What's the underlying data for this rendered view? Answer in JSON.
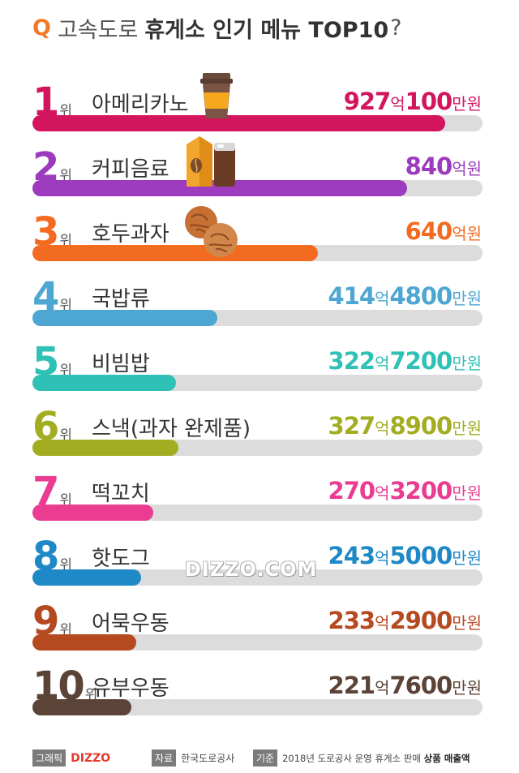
{
  "title": {
    "q": "Q",
    "lead": "고속도로",
    "main": "휴게소 인기 메뉴 TOP10",
    "mark": "?"
  },
  "rank_suffix": "위",
  "chart_data": {
    "type": "bar",
    "title": "고속도로 휴게소 인기 메뉴 TOP10?",
    "unit": "억원",
    "categories": [
      "아메리카노",
      "커피음료",
      "호두과자",
      "국밥류",
      "비빔밥",
      "스낵(과자 완제품)",
      "떡꼬치",
      "핫도그",
      "어묵우동",
      "유부우동"
    ],
    "values": [
      927.01,
      840,
      640,
      414.48,
      322.72,
      327.89,
      270.32,
      243.5,
      233.29,
      221.76
    ],
    "ylim": [
      0,
      1010
    ],
    "rows": [
      {
        "rank": "1",
        "name": "아메리카노",
        "amount_parts": [
          "927",
          "억",
          "100",
          "만원"
        ],
        "color": "#d3155e",
        "value": 927.01
      },
      {
        "rank": "2",
        "name": "커피음료",
        "amount_parts": [
          "840",
          "억원"
        ],
        "color": "#9c3bbd",
        "value": 840
      },
      {
        "rank": "3",
        "name": "호두과자",
        "amount_parts": [
          "640",
          "억원"
        ],
        "color": "#f36b21",
        "value": 640
      },
      {
        "rank": "4",
        "name": "국밥류",
        "amount_parts": [
          "414",
          "억",
          "4800",
          "만원"
        ],
        "color": "#4ea7d2",
        "value": 414.48
      },
      {
        "rank": "5",
        "name": "비빔밥",
        "amount_parts": [
          "322",
          "억",
          "7200",
          "만원"
        ],
        "color": "#2fc1b5",
        "value": 322.72
      },
      {
        "rank": "6",
        "name": "스낵(과자 완제품)",
        "amount_parts": [
          "327",
          "억",
          "8900",
          "만원"
        ],
        "color": "#a2ad21",
        "value": 327.89
      },
      {
        "rank": "7",
        "name": "떡꼬치",
        "amount_parts": [
          "270",
          "억",
          "3200",
          "만원"
        ],
        "color": "#ea3d92",
        "value": 270.32
      },
      {
        "rank": "8",
        "name": "핫도그",
        "amount_parts": [
          "243",
          "억",
          "5000",
          "만원"
        ],
        "color": "#1f88c6",
        "value": 243.5
      },
      {
        "rank": "9",
        "name": "어묵우동",
        "amount_parts": [
          "233",
          "억",
          "2900",
          "만원"
        ],
        "color": "#b54a20",
        "value": 233.29
      },
      {
        "rank": "10",
        "name": "유부우동",
        "amount_parts": [
          "221",
          "억",
          "7600",
          "만원"
        ],
        "color": "#5b4337",
        "value": 221.76
      }
    ]
  },
  "watermark": "DIZZO.COM",
  "footer": {
    "credit_label": "그래픽",
    "credit_brand": "DIZZO",
    "source_label": "자료",
    "source_value": "한국도로공사",
    "basis_label": "기준",
    "basis_value": "2018년 도로공사 운영 휴게소 판매",
    "basis_bold": "상품 매출액"
  },
  "icons": [
    "coffee-cup-icon",
    "coffee-drinks-icon",
    "walnut-cookie-icon"
  ]
}
